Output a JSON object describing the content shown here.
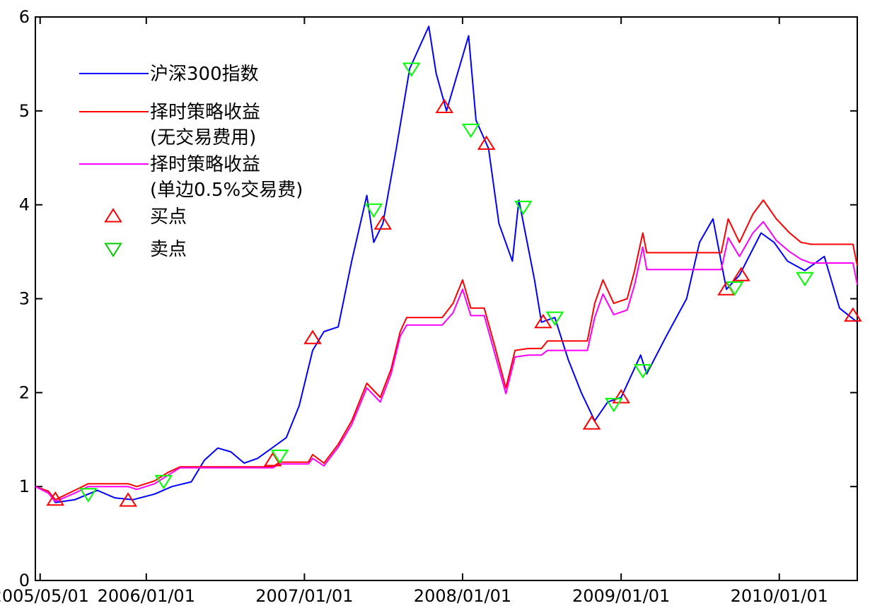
{
  "chart_data": {
    "type": "line",
    "title": "",
    "xlabel": "",
    "ylabel": "",
    "ylim": [
      0,
      6
    ],
    "xlim": [
      "2005-04-20",
      "2010-06-30"
    ],
    "yticks": [
      0,
      1,
      2,
      3,
      4,
      5,
      6
    ],
    "xticks": [
      {
        "date": "2005-05-01",
        "label": "2005/05/01"
      },
      {
        "date": "2006-01-01",
        "label": "2006/01/01"
      },
      {
        "date": "2007-01-01",
        "label": "2007/01/01"
      },
      {
        "date": "2008-01-01",
        "label": "2008/01/01"
      },
      {
        "date": "2009-01-01",
        "label": "2009/01/01"
      },
      {
        "date": "2010-01-01",
        "label": "2010/01/01"
      }
    ],
    "grid": false,
    "legend_position": "top-left",
    "series": [
      {
        "name": "沪深300指数",
        "color": "#0000ff",
        "points": [
          [
            "2005-04-20",
            1.0
          ],
          [
            "2005-05-20",
            0.95
          ],
          [
            "2005-06-05",
            0.83
          ],
          [
            "2005-07-20",
            0.86
          ],
          [
            "2005-09-10",
            0.96
          ],
          [
            "2005-10-20",
            0.88
          ],
          [
            "2005-12-01",
            0.86
          ],
          [
            "2006-01-20",
            0.92
          ],
          [
            "2006-03-01",
            1.0
          ],
          [
            "2006-04-15",
            1.05
          ],
          [
            "2006-05-15",
            1.28
          ],
          [
            "2006-06-15",
            1.41
          ],
          [
            "2006-07-15",
            1.37
          ],
          [
            "2006-08-15",
            1.25
          ],
          [
            "2006-09-15",
            1.3
          ],
          [
            "2006-10-15",
            1.4
          ],
          [
            "2006-11-20",
            1.52
          ],
          [
            "2006-12-20",
            1.86
          ],
          [
            "2007-01-20",
            2.45
          ],
          [
            "2007-02-15",
            2.65
          ],
          [
            "2007-03-20",
            2.7
          ],
          [
            "2007-04-20",
            3.4
          ],
          [
            "2007-05-25",
            4.1
          ],
          [
            "2007-06-10",
            3.6
          ],
          [
            "2007-07-01",
            3.8
          ],
          [
            "2007-08-01",
            4.6
          ],
          [
            "2007-09-01",
            5.45
          ],
          [
            "2007-10-15",
            5.9
          ],
          [
            "2007-11-01",
            5.4
          ],
          [
            "2007-11-25",
            5.0
          ],
          [
            "2008-01-15",
            5.8
          ],
          [
            "2008-02-01",
            4.9
          ],
          [
            "2008-03-01",
            4.6
          ],
          [
            "2008-03-25",
            3.8
          ],
          [
            "2008-04-25",
            3.4
          ],
          [
            "2008-05-10",
            4.05
          ],
          [
            "2008-06-15",
            3.2
          ],
          [
            "2008-07-01",
            2.75
          ],
          [
            "2008-08-01",
            2.8
          ],
          [
            "2008-09-01",
            2.35
          ],
          [
            "2008-10-01",
            2.0
          ],
          [
            "2008-11-01",
            1.7
          ],
          [
            "2008-12-01",
            1.9
          ],
          [
            "2009-01-01",
            1.95
          ],
          [
            "2009-02-15",
            2.4
          ],
          [
            "2009-03-01",
            2.2
          ],
          [
            "2009-04-15",
            2.6
          ],
          [
            "2009-06-01",
            3.0
          ],
          [
            "2009-07-01",
            3.6
          ],
          [
            "2009-08-01",
            3.85
          ],
          [
            "2009-09-01",
            3.1
          ],
          [
            "2009-10-01",
            3.25
          ],
          [
            "2009-11-20",
            3.7
          ],
          [
            "2009-12-20",
            3.6
          ],
          [
            "2010-01-20",
            3.4
          ],
          [
            "2010-03-01",
            3.3
          ],
          [
            "2010-04-15",
            3.45
          ],
          [
            "2010-05-20",
            2.9
          ],
          [
            "2010-06-30",
            2.75
          ]
        ]
      },
      {
        "name": "择时策略收益 (无交易费用)",
        "color": "#ff0000",
        "points": [
          [
            "2005-04-20",
            1.0
          ],
          [
            "2005-05-20",
            0.95
          ],
          [
            "2005-06-05",
            0.86
          ],
          [
            "2005-07-20",
            0.96
          ],
          [
            "2005-08-20",
            1.03
          ],
          [
            "2005-11-20",
            1.03
          ],
          [
            "2005-12-10",
            1.0
          ],
          [
            "2006-01-20",
            1.06
          ],
          [
            "2006-02-20",
            1.15
          ],
          [
            "2006-03-20",
            1.21
          ],
          [
            "2006-10-20",
            1.21
          ],
          [
            "2006-11-05",
            1.26
          ],
          [
            "2007-01-10",
            1.26
          ],
          [
            "2007-01-20",
            1.34
          ],
          [
            "2007-02-15",
            1.25
          ],
          [
            "2007-03-20",
            1.45
          ],
          [
            "2007-04-20",
            1.7
          ],
          [
            "2007-05-25",
            2.1
          ],
          [
            "2007-06-25",
            1.95
          ],
          [
            "2007-07-20",
            2.25
          ],
          [
            "2007-08-10",
            2.65
          ],
          [
            "2007-08-25",
            2.8
          ],
          [
            "2007-11-15",
            2.8
          ],
          [
            "2007-12-10",
            2.95
          ],
          [
            "2008-01-01",
            3.2
          ],
          [
            "2008-01-20",
            2.9
          ],
          [
            "2008-02-20",
            2.9
          ],
          [
            "2008-03-15",
            2.5
          ],
          [
            "2008-04-10",
            2.05
          ],
          [
            "2008-05-01",
            2.45
          ],
          [
            "2008-06-01",
            2.47
          ],
          [
            "2008-07-01",
            2.47
          ],
          [
            "2008-07-15",
            2.55
          ],
          [
            "2008-10-15",
            2.55
          ],
          [
            "2008-11-01",
            2.95
          ],
          [
            "2008-11-20",
            3.2
          ],
          [
            "2008-12-15",
            2.95
          ],
          [
            "2009-01-15",
            3.0
          ],
          [
            "2009-02-01",
            3.3
          ],
          [
            "2009-02-20",
            3.7
          ],
          [
            "2009-03-01",
            3.49
          ],
          [
            "2009-08-20",
            3.49
          ],
          [
            "2009-09-05",
            3.85
          ],
          [
            "2009-10-01",
            3.6
          ],
          [
            "2009-11-01",
            3.9
          ],
          [
            "2009-11-25",
            4.05
          ],
          [
            "2009-12-25",
            3.85
          ],
          [
            "2010-01-25",
            3.7
          ],
          [
            "2010-02-20",
            3.6
          ],
          [
            "2010-03-15",
            3.58
          ],
          [
            "2010-06-20",
            3.58
          ],
          [
            "2010-06-30",
            3.35
          ]
        ]
      },
      {
        "name": "择时策略收益 (单边0.5%交易费)",
        "color": "#ff00ff",
        "points": [
          [
            "2005-04-20",
            1.0
          ],
          [
            "2005-05-20",
            0.93
          ],
          [
            "2005-06-05",
            0.84
          ],
          [
            "2005-07-20",
            0.93
          ],
          [
            "2005-08-20",
            1.0
          ],
          [
            "2005-11-20",
            1.0
          ],
          [
            "2005-12-10",
            0.97
          ],
          [
            "2006-01-20",
            1.03
          ],
          [
            "2006-02-20",
            1.12
          ],
          [
            "2006-03-20",
            1.2
          ],
          [
            "2006-10-20",
            1.2
          ],
          [
            "2006-11-05",
            1.24
          ],
          [
            "2007-01-10",
            1.24
          ],
          [
            "2007-01-20",
            1.3
          ],
          [
            "2007-02-15",
            1.22
          ],
          [
            "2007-03-20",
            1.42
          ],
          [
            "2007-04-20",
            1.66
          ],
          [
            "2007-05-25",
            2.05
          ],
          [
            "2007-06-25",
            1.9
          ],
          [
            "2007-07-20",
            2.2
          ],
          [
            "2007-08-10",
            2.6
          ],
          [
            "2007-08-25",
            2.72
          ],
          [
            "2007-11-15",
            2.72
          ],
          [
            "2007-12-10",
            2.85
          ],
          [
            "2008-01-01",
            3.1
          ],
          [
            "2008-01-20",
            2.82
          ],
          [
            "2008-02-20",
            2.82
          ],
          [
            "2008-03-15",
            2.42
          ],
          [
            "2008-04-10",
            1.99
          ],
          [
            "2008-05-01",
            2.38
          ],
          [
            "2008-06-01",
            2.4
          ],
          [
            "2008-07-01",
            2.4
          ],
          [
            "2008-07-15",
            2.45
          ],
          [
            "2008-10-15",
            2.45
          ],
          [
            "2008-11-01",
            2.8
          ],
          [
            "2008-11-20",
            3.05
          ],
          [
            "2008-12-15",
            2.83
          ],
          [
            "2009-01-15",
            2.88
          ],
          [
            "2009-02-01",
            3.15
          ],
          [
            "2009-02-20",
            3.55
          ],
          [
            "2009-03-01",
            3.31
          ],
          [
            "2009-08-20",
            3.31
          ],
          [
            "2009-09-05",
            3.65
          ],
          [
            "2009-10-01",
            3.45
          ],
          [
            "2009-11-01",
            3.7
          ],
          [
            "2009-11-25",
            3.82
          ],
          [
            "2009-12-25",
            3.62
          ],
          [
            "2010-01-25",
            3.5
          ],
          [
            "2010-02-20",
            3.42
          ],
          [
            "2010-03-15",
            3.38
          ],
          [
            "2010-06-20",
            3.38
          ],
          [
            "2010-06-30",
            3.15
          ]
        ]
      }
    ],
    "markers": {
      "buy": {
        "name": "买点",
        "color": "#ff0000",
        "shape": "triangle-up",
        "points": [
          [
            "2005-06-05",
            0.86
          ],
          [
            "2005-11-20",
            0.85
          ],
          [
            "2006-10-20",
            1.28
          ],
          [
            "2007-01-20",
            2.58
          ],
          [
            "2007-07-01",
            3.8
          ],
          [
            "2007-11-20",
            5.04
          ],
          [
            "2008-02-25",
            4.65
          ],
          [
            "2008-07-05",
            2.75
          ],
          [
            "2008-10-25",
            1.67
          ],
          [
            "2009-01-01",
            1.95
          ],
          [
            "2009-09-01",
            3.1
          ],
          [
            "2009-10-05",
            3.25
          ],
          [
            "2010-06-20",
            2.82
          ]
        ]
      },
      "sell": {
        "name": "卖点",
        "color": "#00ff00",
        "shape": "triangle-down",
        "points": [
          [
            "2005-08-20",
            0.92
          ],
          [
            "2006-02-10",
            1.06
          ],
          [
            "2006-11-05",
            1.33
          ],
          [
            "2007-06-10",
            3.95
          ],
          [
            "2007-09-05",
            5.45
          ],
          [
            "2008-01-20",
            4.8
          ],
          [
            "2008-05-20",
            3.98
          ],
          [
            "2008-08-01",
            2.8
          ],
          [
            "2008-12-15",
            1.88
          ],
          [
            "2009-02-20",
            2.24
          ],
          [
            "2009-09-20",
            3.12
          ],
          [
            "2010-03-01",
            3.22
          ]
        ]
      }
    },
    "legend": [
      {
        "type": "line",
        "color": "#0000ff",
        "text": [
          "沪深300指数"
        ]
      },
      {
        "type": "line",
        "color": "#ff0000",
        "text": [
          "择时策略收益",
          "(无交易费用)"
        ]
      },
      {
        "type": "line",
        "color": "#ff00ff",
        "text": [
          "择时策略收益",
          "(单边0.5%交易费)"
        ]
      },
      {
        "type": "marker-up",
        "color": "#ff0000",
        "text": [
          "买点"
        ]
      },
      {
        "type": "marker-down",
        "color": "#00cc00",
        "text": [
          "卖点"
        ]
      }
    ]
  }
}
